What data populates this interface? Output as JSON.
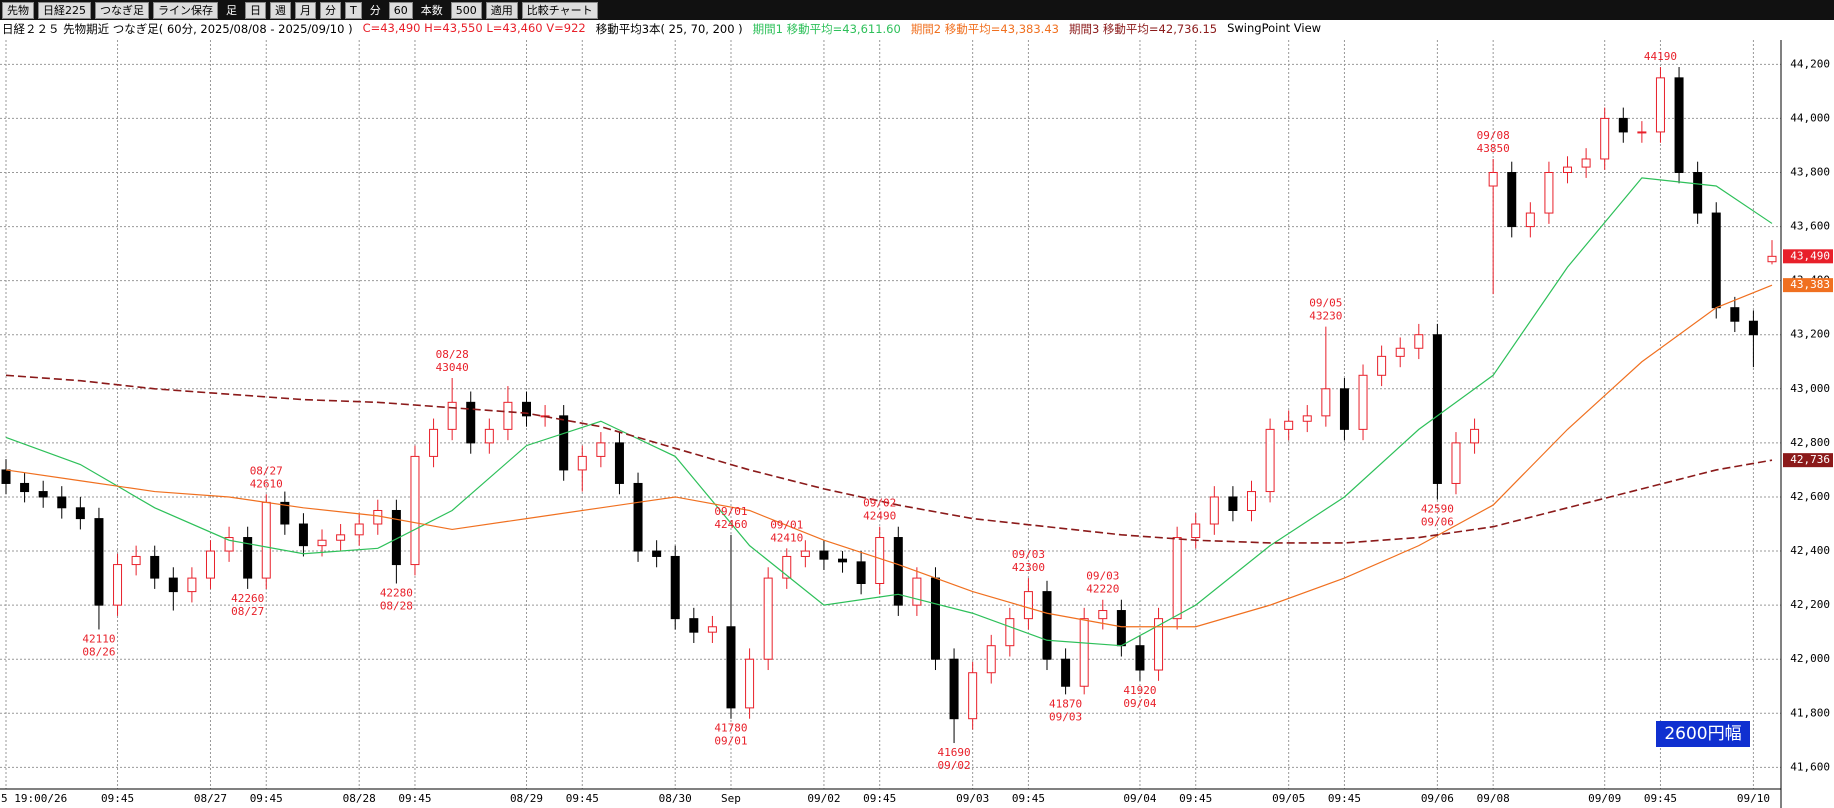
{
  "toolbar": {
    "items": [
      "先物",
      "日経225",
      "つなぎ足",
      "ライン保存",
      "足",
      "日",
      "週",
      "月",
      "分",
      "T",
      "分",
      "60",
      "本数",
      "500",
      "適用",
      "比較チャート"
    ]
  },
  "header": {
    "title": "日経２２５ 先物期近 つなぎ足( 60分, 2025/08/08 - 2025/09/10 )",
    "ohlc": "C=43,490 H=43,550 L=43,460 V=922",
    "ma_title": "移動平均3本( 25, 70, 200 )",
    "ma1": "期間1 移動平均=43,611.60",
    "ma2": "期間2 移動平均=43,383.43",
    "ma3": "期間3 移動平均=42,736.15",
    "view": "SwingPoint View"
  },
  "chart_data": {
    "type": "candlestick",
    "categories": [
      "5 19:00/26",
      null,
      null,
      null,
      null,
      null,
      "09:45",
      null,
      null,
      null,
      null,
      "08/27",
      null,
      null,
      "09:45",
      null,
      null,
      null,
      null,
      "08/28",
      null,
      null,
      "09:45",
      null,
      null,
      null,
      null,
      null,
      "08/29",
      null,
      null,
      "09:45",
      null,
      null,
      null,
      null,
      "08/30",
      null,
      null,
      "Sep",
      null,
      null,
      null,
      null,
      "09/02",
      null,
      null,
      "09:45",
      null,
      null,
      null,
      null,
      "09/03",
      null,
      null,
      "09:45",
      null,
      null,
      null,
      null,
      null,
      "09/04",
      null,
      null,
      "09:45",
      null,
      null,
      null,
      null,
      "09/05",
      null,
      null,
      "09:45",
      null,
      null,
      null,
      null,
      "09/06",
      null,
      null,
      "09/08",
      null,
      null,
      null,
      null,
      null,
      "09/09",
      null,
      null,
      "09:45",
      null,
      null,
      null,
      null,
      "09/10",
      null
    ],
    "open": [
      42700,
      42650,
      42620,
      42600,
      42560,
      42520,
      42200,
      42350,
      42380,
      42300,
      42250,
      42300,
      42400,
      42450,
      42300,
      42580,
      42500,
      42420,
      42440,
      42460,
      42500,
      42550,
      42350,
      42750,
      42850,
      42950,
      42800,
      42850,
      42950,
      42900,
      42900,
      42700,
      42750,
      42800,
      42650,
      42400,
      42380,
      42150,
      42100,
      42120,
      41820,
      42000,
      42300,
      42380,
      42400,
      42370,
      42360,
      42280,
      42450,
      42200,
      42300,
      42000,
      41780,
      41950,
      42050,
      42150,
      42250,
      42000,
      41900,
      42150,
      42180,
      42050,
      41960,
      42150,
      42450,
      42500,
      42600,
      42550,
      42620,
      42850,
      42880,
      42900,
      43000,
      42850,
      43050,
      43120,
      43150,
      43200,
      42650,
      42800,
      43750,
      43800,
      43600,
      43650,
      43800,
      43820,
      43850,
      44000,
      43950,
      43950,
      44150,
      43800,
      43650,
      43300,
      43250,
      43470
    ],
    "high": [
      42740,
      42690,
      42660,
      42640,
      42600,
      42560,
      42390,
      42420,
      42420,
      42340,
      42340,
      42440,
      42490,
      42490,
      42610,
      42620,
      42540,
      42480,
      42500,
      42540,
      42590,
      42590,
      42790,
      42890,
      43040,
      42990,
      42890,
      43010,
      42990,
      42940,
      42940,
      42790,
      42840,
      42840,
      42690,
      42440,
      42420,
      42190,
      42160,
      42460,
      42040,
      42340,
      42410,
      42440,
      42440,
      42400,
      42400,
      42490,
      42490,
      42340,
      42340,
      42040,
      41990,
      42090,
      42190,
      42300,
      42290,
      42040,
      42190,
      42220,
      42220,
      42090,
      42190,
      42490,
      42540,
      42640,
      42640,
      42660,
      42890,
      42920,
      42940,
      43230,
      43040,
      43090,
      43160,
      43190,
      43240,
      43240,
      42840,
      42890,
      43850,
      43840,
      43690,
      43840,
      43860,
      43890,
      44040,
      44040,
      43990,
      44190,
      44190,
      43840,
      43690,
      43340,
      43290,
      43550
    ],
    "low": [
      42610,
      42580,
      42560,
      42520,
      42480,
      42110,
      42160,
      42310,
      42260,
      42180,
      42210,
      42260,
      42360,
      42260,
      42260,
      42460,
      42380,
      42380,
      42400,
      42420,
      42460,
      42280,
      42310,
      42710,
      42810,
      42760,
      42760,
      42810,
      42860,
      42860,
      42660,
      42620,
      42710,
      42610,
      42360,
      42340,
      42110,
      42060,
      42060,
      41780,
      41780,
      41960,
      42260,
      42340,
      42330,
      42320,
      42240,
      42240,
      42160,
      42160,
      41960,
      41690,
      41740,
      41910,
      42010,
      42110,
      41960,
      41870,
      41870,
      42110,
      42010,
      41920,
      41920,
      42110,
      42410,
      42460,
      42510,
      42510,
      42580,
      42810,
      42840,
      42860,
      42810,
      42810,
      43010,
      43080,
      43110,
      42590,
      42610,
      42760,
      43350,
      43560,
      43560,
      43610,
      43760,
      43780,
      43810,
      43910,
      43910,
      43910,
      43760,
      43610,
      43260,
      43210,
      43080,
      43460
    ],
    "close": [
      42650,
      42620,
      42600,
      42560,
      42520,
      42200,
      42350,
      42380,
      42300,
      42250,
      42300,
      42400,
      42450,
      42300,
      42580,
      42500,
      42420,
      42440,
      42460,
      42500,
      42550,
      42350,
      42750,
      42850,
      42950,
      42800,
      42850,
      42950,
      42900,
      42900,
      42700,
      42750,
      42800,
      42650,
      42400,
      42380,
      42150,
      42100,
      42120,
      41820,
      42000,
      42300,
      42380,
      42400,
      42370,
      42360,
      42280,
      42450,
      42200,
      42300,
      42000,
      41780,
      41950,
      42050,
      42150,
      42250,
      42000,
      41900,
      42150,
      42180,
      42050,
      41960,
      42150,
      42450,
      42500,
      42600,
      42550,
      42620,
      42850,
      42880,
      42900,
      43000,
      42850,
      43050,
      43120,
      43150,
      43200,
      42650,
      42800,
      42850,
      43800,
      43600,
      43650,
      43800,
      43820,
      43850,
      44000,
      43950,
      43950,
      44150,
      43800,
      43650,
      43300,
      43250,
      43200,
      43490
    ],
    "up_color": "#e8202a",
    "down_color": "#000000",
    "series": [
      {
        "name": "期間1",
        "color": "#2ec05a",
        "dash": false,
        "x": [
          0,
          4,
          8,
          12,
          16,
          20,
          24,
          28,
          32,
          36,
          40,
          44,
          48,
          52,
          56,
          60,
          64,
          68,
          72,
          76,
          80,
          84,
          88,
          92,
          95
        ],
        "values": [
          42820,
          42720,
          42560,
          42440,
          42390,
          42410,
          42550,
          42790,
          42880,
          42750,
          42420,
          42200,
          42240,
          42170,
          42070,
          42050,
          42200,
          42420,
          42600,
          42850,
          43050,
          43450,
          43780,
          43750,
          43611.6
        ]
      },
      {
        "name": "期間2",
        "color": "#f07020",
        "dash": false,
        "x": [
          0,
          4,
          8,
          12,
          16,
          20,
          24,
          28,
          32,
          36,
          40,
          44,
          48,
          52,
          56,
          60,
          64,
          68,
          72,
          76,
          80,
          84,
          88,
          92,
          95
        ],
        "values": [
          42700,
          42660,
          42620,
          42600,
          42560,
          42530,
          42480,
          42520,
          42560,
          42600,
          42550,
          42440,
          42350,
          42250,
          42170,
          42120,
          42120,
          42200,
          42300,
          42420,
          42570,
          42850,
          43100,
          43300,
          43383.43
        ]
      },
      {
        "name": "期間3",
        "color": "#8b1a1a",
        "dash": true,
        "x": [
          0,
          4,
          8,
          12,
          16,
          20,
          24,
          28,
          32,
          36,
          40,
          44,
          48,
          52,
          56,
          60,
          64,
          68,
          72,
          76,
          80,
          84,
          88,
          92,
          95
        ],
        "values": [
          43050,
          43030,
          43000,
          42980,
          42960,
          42950,
          42930,
          42910,
          42860,
          42780,
          42700,
          42630,
          42570,
          42520,
          42490,
          42460,
          42440,
          42430,
          42430,
          42450,
          42490,
          42560,
          42630,
          42700,
          42736.15
        ]
      }
    ],
    "swing_points": [
      {
        "side": "low",
        "x": 5,
        "price": 42110,
        "date": "08/26"
      },
      {
        "side": "low",
        "x": 13,
        "price": 42260,
        "date": "08/27"
      },
      {
        "side": "high",
        "x": 14,
        "price": 42610,
        "date": "08/27"
      },
      {
        "side": "low",
        "x": 21,
        "price": 42280,
        "date": "08/28"
      },
      {
        "side": "high",
        "x": 24,
        "price": 43040,
        "date": "08/28"
      },
      {
        "side": "high",
        "x": 39,
        "price": 42460,
        "date": "09/01"
      },
      {
        "side": "low",
        "x": 39,
        "price": 41780,
        "date": "09/01"
      },
      {
        "side": "high",
        "x": 42,
        "price": 42410,
        "date": "09/01"
      },
      {
        "side": "high",
        "x": 47,
        "price": 42490,
        "date": "09/02"
      },
      {
        "side": "low",
        "x": 51,
        "price": 41690,
        "date": "09/02"
      },
      {
        "side": "high",
        "x": 55,
        "price": 42300,
        "date": "09/03"
      },
      {
        "side": "low",
        "x": 57,
        "price": 41870,
        "date": "09/03"
      },
      {
        "side": "high",
        "x": 59,
        "price": 42220,
        "date": "09/03"
      },
      {
        "side": "low",
        "x": 61,
        "price": 41920,
        "date": "09/04"
      },
      {
        "side": "high",
        "x": 71,
        "price": 43230,
        "date": "09/05"
      },
      {
        "side": "low",
        "x": 77,
        "price": 42590,
        "date": "09/06"
      },
      {
        "side": "high",
        "x": 80,
        "price": 43850,
        "date": "09/08"
      },
      {
        "side": "high",
        "x": 89,
        "price": 44190
      }
    ],
    "price_tags": [
      {
        "value": 43490,
        "label": "43,490",
        "color": "#e8202a"
      },
      {
        "value": 43383.43,
        "label": "43,383",
        "color": "#f07020"
      },
      {
        "value": 42736.15,
        "label": "42,736",
        "color": "#8b1a1a"
      }
    ],
    "range_note": "2600円幅",
    "ylim": [
      41520,
      44290
    ],
    "yticks": [
      {
        "value": 41600,
        "label": "41,600"
      },
      {
        "value": 41800,
        "label": "41,800"
      },
      {
        "value": 42000,
        "label": "42,000"
      },
      {
        "value": 42200,
        "label": "42,200"
      },
      {
        "value": 42400,
        "label": "42,400"
      },
      {
        "value": 42600,
        "label": "42,600"
      },
      {
        "value": 42800,
        "label": "42,800"
      },
      {
        "value": 43000,
        "label": "43,000"
      },
      {
        "value": 43200,
        "label": "43,200"
      },
      {
        "value": 43400,
        "label": "43,400"
      },
      {
        "value": 43600,
        "label": "43,600"
      },
      {
        "value": 43800,
        "label": "43,800"
      },
      {
        "value": 44000,
        "label": "44,000"
      },
      {
        "value": 44200,
        "label": "44,200"
      }
    ],
    "grid": true
  }
}
